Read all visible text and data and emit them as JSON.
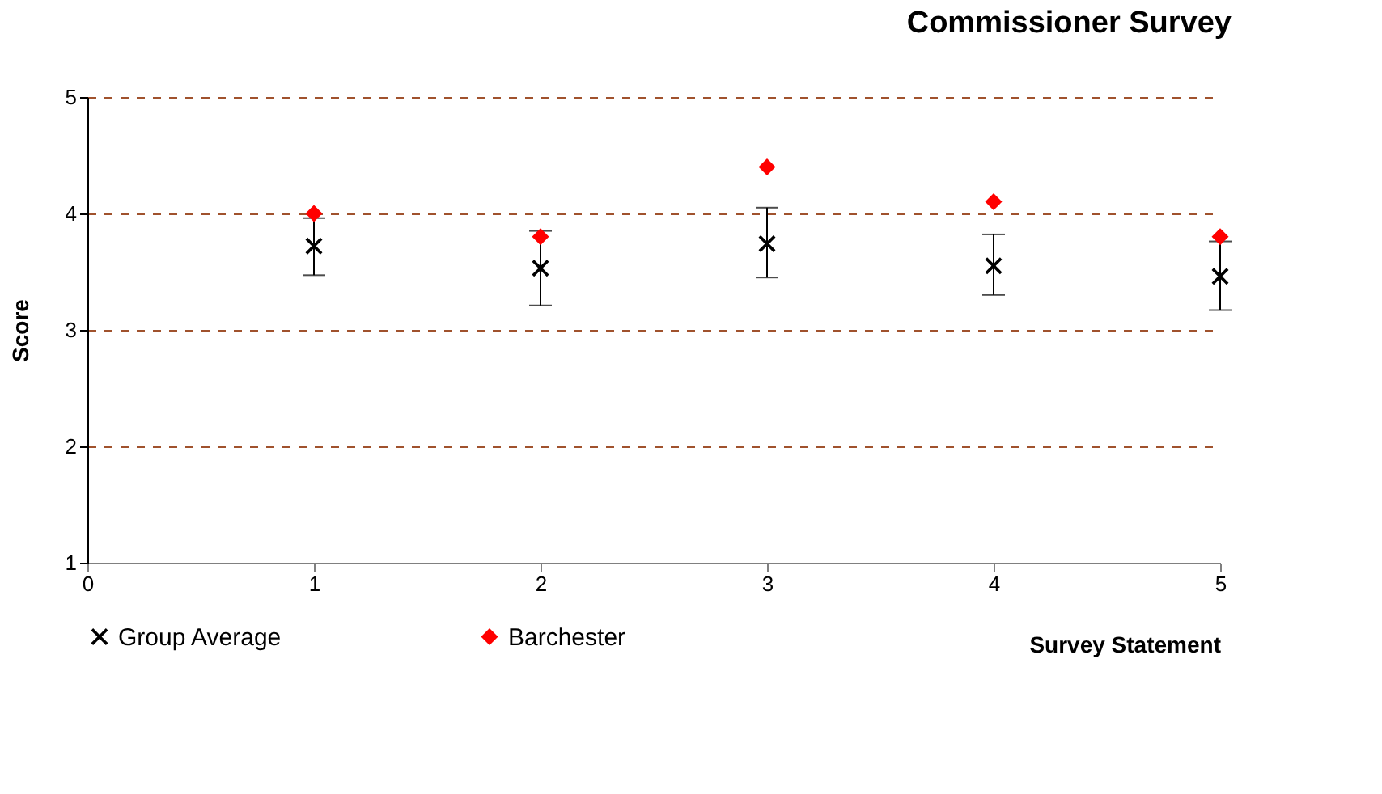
{
  "chart_data": {
    "type": "scatter",
    "title": "Commissioner Survey",
    "xlabel": "Survey Statement",
    "ylabel": "Score",
    "x": [
      1,
      2,
      3,
      4,
      5
    ],
    "series": [
      {
        "name": "Group Average",
        "color": "#000000",
        "marker": "cross",
        "values": [
          3.72,
          3.53,
          3.74,
          3.55,
          3.46
        ],
        "errors": [
          [
            3.47,
            3.96
          ],
          [
            3.21,
            3.85
          ],
          [
            3.45,
            4.05
          ],
          [
            3.3,
            3.82
          ],
          [
            3.17,
            3.76
          ]
        ]
      },
      {
        "name": "Barchester",
        "color": "#ff0000",
        "marker": "diamond",
        "values": [
          4.0,
          3.8,
          4.4,
          4.1,
          3.8
        ]
      }
    ],
    "xlim": [
      0,
      5
    ],
    "xticks": [
      0,
      1,
      2,
      3,
      4,
      5
    ],
    "ylim": [
      1,
      5
    ],
    "yticks": [
      1,
      2,
      3,
      4,
      5
    ],
    "grid": "y",
    "legend": "bottom"
  }
}
